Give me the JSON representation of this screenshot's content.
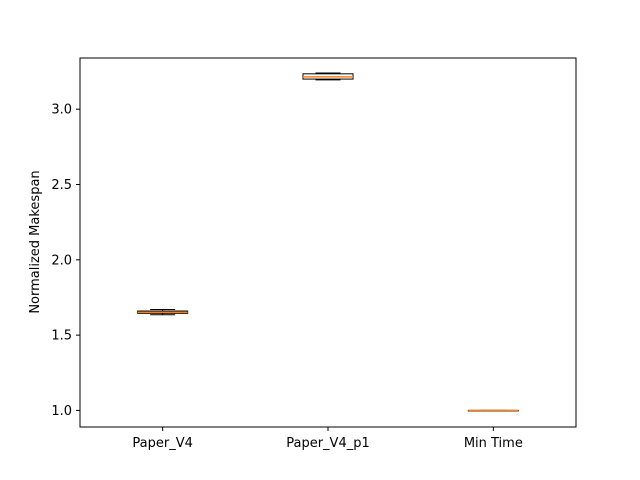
{
  "chart_data": {
    "type": "box",
    "title": "",
    "xlabel": "",
    "ylabel": "Normalized Makespan",
    "ylim": [
      0.89,
      3.34
    ],
    "yticks": [
      "1.0",
      "1.5",
      "2.0",
      "2.5",
      "3.0"
    ],
    "grid": false,
    "categories": [
      "Paper_V4",
      "Paper_V4_p1",
      "Min Time"
    ],
    "boxes": [
      {
        "category": "Paper_V4",
        "whisker_low": 1.635,
        "q1": 1.645,
        "median": 1.652,
        "q3": 1.66,
        "whisker_high": 1.67
      },
      {
        "category": "Paper_V4_p1",
        "whisker_low": 3.195,
        "q1": 3.2,
        "median": 3.215,
        "q3": 3.235,
        "whisker_high": 3.24
      },
      {
        "category": "Min Time",
        "whisker_low": 1.0,
        "q1": 1.0,
        "median": 1.0,
        "q3": 1.0,
        "whisker_high": 1.0
      }
    ],
    "colors": {
      "box": "#ffffff",
      "median": "#ff7f0e",
      "edge": "#000000"
    }
  }
}
